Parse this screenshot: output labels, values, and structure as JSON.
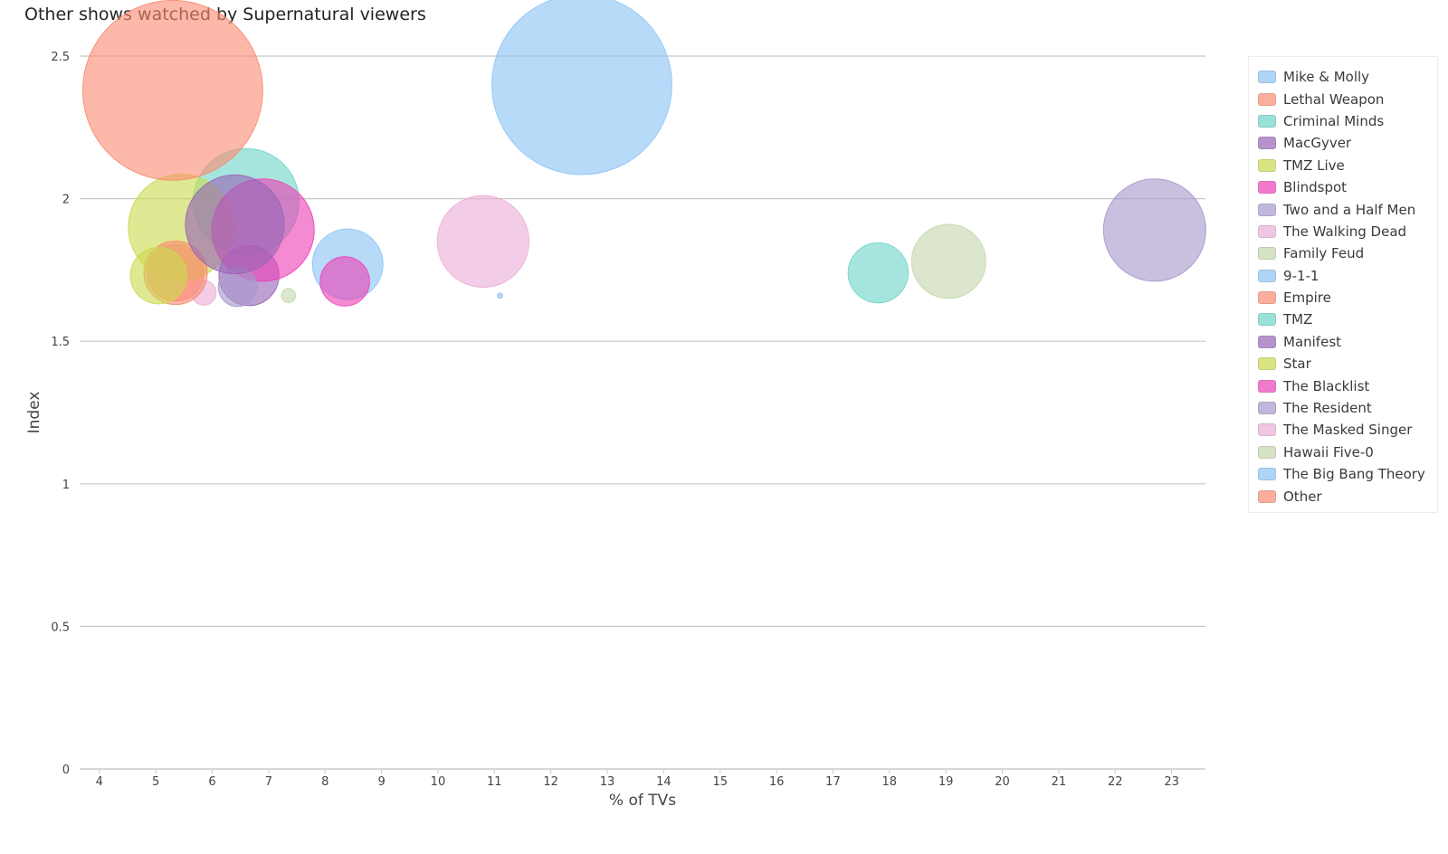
{
  "chart_data": {
    "type": "scatter",
    "title": "Other shows watched by Supernatural viewers",
    "xlabel": "% of TVs",
    "ylabel": "Index",
    "xlim": [
      3.65,
      23.6
    ],
    "ylim": [
      0,
      2.5
    ],
    "xticks": [
      "4",
      "5",
      "6",
      "7",
      "8",
      "9",
      "10",
      "11",
      "12",
      "13",
      "14",
      "15",
      "16",
      "17",
      "18",
      "19",
      "20",
      "21",
      "22",
      "23"
    ],
    "yticks": [
      "0",
      "0.5",
      "1",
      "1.5",
      "2",
      "2.5"
    ],
    "grid": "horizontal",
    "legend_position": "right",
    "series": [
      {
        "name": "Mike & Molly",
        "color": "#8cc4f5",
        "x": 11.1,
        "y": 1.66,
        "size": 1.5
      },
      {
        "name": "Lethal Weapon",
        "color": "#fa8c72",
        "x": 5.35,
        "y": 1.74,
        "size": 16
      },
      {
        "name": "Criminal Minds",
        "color": "#6fd5c9",
        "x": 6.6,
        "y": 1.99,
        "size": 30
      },
      {
        "name": "MacGyver",
        "color": "#9765b6",
        "x": 6.65,
        "y": 1.73,
        "size": 17
      },
      {
        "name": "TMZ Live",
        "color": "#cbda4f",
        "x": 5.45,
        "y": 1.9,
        "size": 30
      },
      {
        "name": "Blindspot",
        "color": "#ec42b7",
        "x": 6.9,
        "y": 1.89,
        "size": 29
      },
      {
        "name": "Two and a Half Men",
        "color": "#a898cc",
        "x": 6.45,
        "y": 1.69,
        "size": 11
      },
      {
        "name": "The Walking Dead",
        "color": "#ebafd8",
        "x": 5.85,
        "y": 1.67,
        "size": 7
      },
      {
        "name": "Family Feud",
        "color": "#c5d7ad",
        "x": 7.35,
        "y": 1.66,
        "size": 4
      },
      {
        "name": "9-1-1",
        "color": "#8cc4f5",
        "x": 8.4,
        "y": 1.77,
        "size": 20
      },
      {
        "name": "Empire",
        "color": "#fa8c72",
        "x": 5.35,
        "y": 1.74,
        "size": 18
      },
      {
        "name": "TMZ",
        "color": "#6fd5c9",
        "x": 17.8,
        "y": 1.74,
        "size": 17
      },
      {
        "name": "Manifest",
        "color": "#9765b6",
        "x": 6.4,
        "y": 1.91,
        "size": 28
      },
      {
        "name": "Star",
        "color": "#cbda4f",
        "x": 5.05,
        "y": 1.73,
        "size": 16
      },
      {
        "name": "The Blacklist",
        "color": "#ec42b7",
        "x": 8.35,
        "y": 1.71,
        "size": 14
      },
      {
        "name": "The Resident",
        "color": "#a898cc",
        "x": 22.7,
        "y": 1.89,
        "size": 29
      },
      {
        "name": "The Masked Singer",
        "color": "#ebafd8",
        "x": 10.8,
        "y": 1.85,
        "size": 26
      },
      {
        "name": "Hawaii Five-0",
        "color": "#c5d7ad",
        "x": 19.05,
        "y": 1.78,
        "size": 21
      },
      {
        "name": "The Big Bang Theory",
        "color": "#8cc4f5",
        "x": 12.55,
        "y": 2.4,
        "size": 51
      },
      {
        "name": "Other",
        "color": "#fa8c72",
        "x": 5.3,
        "y": 2.38,
        "size": 51
      }
    ]
  }
}
